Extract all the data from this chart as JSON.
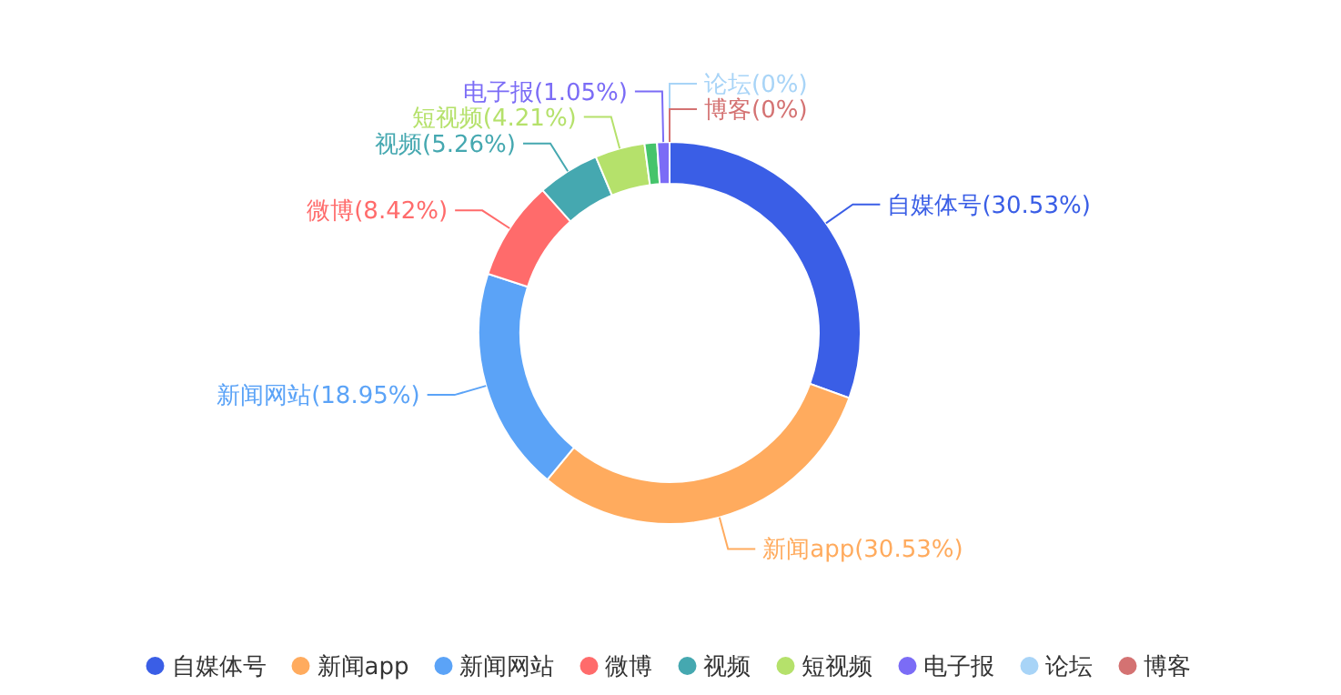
{
  "chart_data": {
    "type": "donut",
    "categories": [
      "自媒体号",
      "新闻app",
      "新闻网站",
      "微博",
      "视频",
      "短视频",
      null,
      "电子报",
      "论坛",
      "博客"
    ],
    "values": [
      30.53,
      30.53,
      18.95,
      8.42,
      5.26,
      4.21,
      1.05,
      1.05,
      0,
      0
    ],
    "value_labels": [
      "(30.53%)",
      "(30.53%)",
      "(18.95%)",
      "(8.42%)",
      "(5.26%)",
      "(4.21%)",
      null,
      "(1.05%)",
      "(0%)",
      "(0%)"
    ],
    "colors": [
      "#3a5ee6",
      "#ffab5e",
      "#5ba3f7",
      "#ff6b6b",
      "#45a8b0",
      "#b5e16b",
      "#45c46b",
      "#7b6cf6",
      "#a8d4f7",
      "#d47272"
    ],
    "legend": "bottom"
  }
}
